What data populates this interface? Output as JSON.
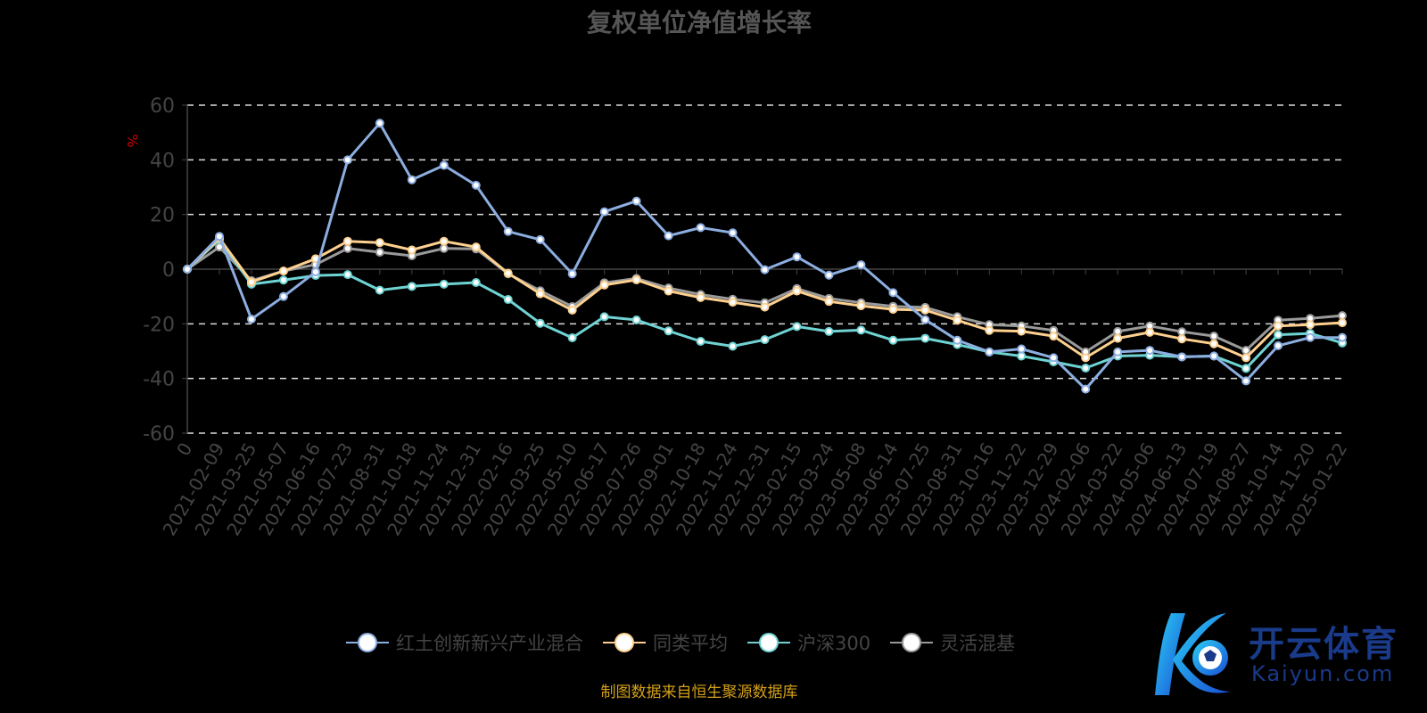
{
  "chart_data": {
    "type": "line",
    "title": "复权单位净值增长率",
    "ylabel": "%",
    "xlabel": "",
    "ylim": [
      -60,
      60
    ],
    "yticks": [
      60,
      40,
      20,
      0,
      -20,
      -40,
      -60
    ],
    "grid": true,
    "legend_position": "bottom",
    "categories": [
      "0",
      "2021-02-09",
      "2021-03-25",
      "2021-05-07",
      "2021-06-16",
      "2021-07-23",
      "2021-08-31",
      "2021-10-18",
      "2021-11-24",
      "2021-12-31",
      "2022-02-16",
      "2022-03-25",
      "2022-05-10",
      "2022-06-17",
      "2022-07-26",
      "2022-09-01",
      "2022-10-18",
      "2022-11-24",
      "2022-12-31",
      "2023-02-15",
      "2023-03-24",
      "2023-05-08",
      "2023-06-14",
      "2023-07-25",
      "2023-08-31",
      "2023-10-16",
      "2023-11-22",
      "2023-12-29",
      "2024-02-06",
      "2024-03-22",
      "2024-05-06",
      "2024-06-13",
      "2024-07-19",
      "2024-08-27",
      "2024-10-14",
      "2024-11-20",
      "2025-01-22"
    ],
    "series": [
      {
        "name": "红土创新新兴产业混合",
        "color": "#8caee0",
        "values": [
          0,
          12,
          -18.3,
          -10,
          -1,
          40,
          53.4,
          32.7,
          38,
          30.7,
          13.8,
          10.8,
          -1.7,
          21,
          24.9,
          12.2,
          15.2,
          13.3,
          -0.2,
          4.5,
          -2.2,
          1.6,
          -8.6,
          -18.5,
          -26,
          -30.3,
          -29.2,
          -32.4,
          -43.9,
          -30.3,
          -29.7,
          -32.1,
          -31.8,
          -40.9,
          -28,
          -25,
          -25
        ]
      },
      {
        "name": "同类平均",
        "color": "#fdd08f",
        "values": [
          0,
          11.3,
          -4.7,
          -0.7,
          3.8,
          10.2,
          9.7,
          7,
          10.2,
          8.1,
          -1.5,
          -9,
          -15,
          -5.8,
          -3.9,
          -8,
          -10.4,
          -12.1,
          -13.9,
          -8,
          -11.8,
          -13.4,
          -14.7,
          -15,
          -18.7,
          -22.4,
          -22.7,
          -24.5,
          -32.4,
          -25.3,
          -23.1,
          -25.5,
          -27.3,
          -32.4,
          -20.8,
          -20.3,
          -19.6
        ]
      },
      {
        "name": "沪深300",
        "color": "#6fd3d3",
        "values": [
          0,
          10.8,
          -5.5,
          -4,
          -2.3,
          -2,
          -7.7,
          -6.3,
          -5.5,
          -4.9,
          -11.1,
          -19.8,
          -25.1,
          -17.4,
          -18.6,
          -22.6,
          -26.4,
          -28.2,
          -25.8,
          -21,
          -22.8,
          -22.3,
          -26,
          -25.3,
          -27.6,
          -30.3,
          -31.8,
          -33.9,
          -36.2,
          -31.8,
          -31.5,
          -32.1,
          -31.8,
          -36.3,
          -24,
          -23.5,
          -27
        ]
      },
      {
        "name": "灵活混基",
        "color": "#9a9a9a",
        "values": [
          0,
          8.1,
          -4.2,
          -0.7,
          1.7,
          7.6,
          6.2,
          4.9,
          7.6,
          7.4,
          -1.7,
          -7.9,
          -13.7,
          -5,
          -3.4,
          -6.9,
          -9.3,
          -11,
          -12.3,
          -7.1,
          -10.7,
          -12.3,
          -13.6,
          -14,
          -17.4,
          -20.3,
          -20.8,
          -22.4,
          -30.3,
          -22.8,
          -20.8,
          -22.9,
          -24.5,
          -29.7,
          -18.7,
          -18,
          -17
        ]
      }
    ]
  },
  "source_note": "制图数据来自恒生聚源数据库",
  "logo": {
    "cn": "开云体育",
    "en": "Kaiyun.com"
  }
}
